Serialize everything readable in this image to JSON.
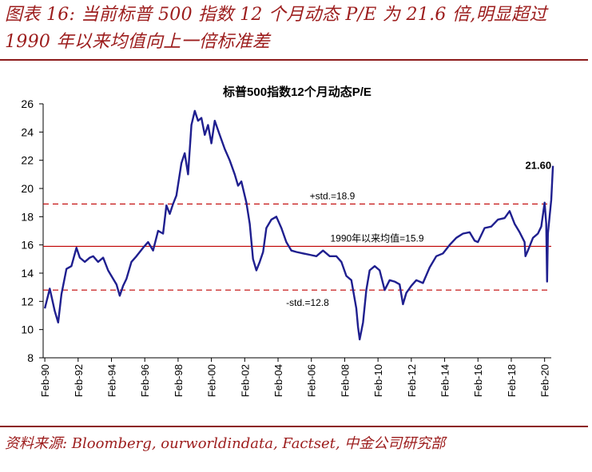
{
  "figure": {
    "title": "图表 16: 当前标普 500 指数 12 个月动态 P/E 为 21.6 倍,明显超过 1990 年以来均值向上一倍标准差",
    "source": "资料来源: Bloomberg, ourworldindata, Factset, 中金公司研究部"
  },
  "colors": {
    "accent": "#9c1c1c",
    "series": "#1f1f8f",
    "ref": "#c00000"
  },
  "chart_data": {
    "type": "line",
    "title": "标普500指数12个月动态P/E",
    "xlabel": "",
    "ylabel": "",
    "ylim": [
      8,
      26
    ],
    "yticks": [
      8,
      10,
      12,
      14,
      16,
      18,
      20,
      22,
      24,
      26
    ],
    "xlim": [
      1990.0,
      2020.5
    ],
    "xticks": [
      "Feb-90",
      "Feb-92",
      "Feb-94",
      "Feb-96",
      "Feb-98",
      "Feb-00",
      "Feb-02",
      "Feb-04",
      "Feb-06",
      "Feb-08",
      "Feb-10",
      "Feb-12",
      "Feb-14",
      "Feb-16",
      "Feb-18",
      "Feb-20"
    ],
    "grid": false,
    "series": [
      {
        "name": "12个月动态P/E",
        "x": [
          1990.1,
          1990.4,
          1990.7,
          1990.9,
          1991.1,
          1991.4,
          1991.7,
          1992.0,
          1992.2,
          1992.5,
          1992.8,
          1993.0,
          1993.3,
          1993.6,
          1993.9,
          1994.2,
          1994.4,
          1994.6,
          1994.8,
          1995.0,
          1995.3,
          1995.6,
          1996.0,
          1996.3,
          1996.6,
          1996.9,
          1997.2,
          1997.4,
          1997.6,
          1997.8,
          1998.0,
          1998.3,
          1998.5,
          1998.7,
          1998.9,
          1999.1,
          1999.3,
          1999.5,
          1999.7,
          1999.9,
          2000.1,
          2000.3,
          2000.6,
          2000.9,
          2001.2,
          2001.5,
          2001.7,
          2001.9,
          2002.2,
          2002.4,
          2002.6,
          2002.8,
          2003.0,
          2003.2,
          2003.4,
          2003.7,
          2004.0,
          2004.3,
          2004.6,
          2004.9,
          2005.2,
          2005.6,
          2006.0,
          2006.4,
          2006.8,
          2007.2,
          2007.6,
          2007.9,
          2008.2,
          2008.5,
          2008.8,
          2008.9,
          2009.0,
          2009.2,
          2009.4,
          2009.6,
          2009.9,
          2010.2,
          2010.5,
          2010.8,
          2011.1,
          2011.4,
          2011.6,
          2011.8,
          2012.1,
          2012.4,
          2012.8,
          2013.2,
          2013.6,
          2014.0,
          2014.4,
          2014.8,
          2015.2,
          2015.6,
          2015.9,
          2016.1,
          2016.5,
          2016.9,
          2017.3,
          2017.7,
          2018.0,
          2018.3,
          2018.6,
          2018.9,
          2018.95,
          2019.1,
          2019.4,
          2019.7,
          2019.9,
          2020.1,
          2020.2,
          2020.25,
          2020.3,
          2020.5,
          2020.6
        ],
        "values": [
          11.5,
          12.9,
          11.3,
          10.5,
          12.5,
          14.3,
          14.5,
          15.8,
          15.1,
          14.8,
          15.1,
          15.2,
          14.8,
          15.1,
          14.2,
          13.6,
          13.2,
          12.4,
          13.1,
          13.6,
          14.8,
          15.2,
          15.8,
          16.2,
          15.6,
          17.0,
          16.8,
          18.8,
          18.2,
          18.9,
          19.5,
          21.8,
          22.5,
          21.0,
          24.5,
          25.5,
          24.8,
          25.0,
          23.8,
          24.5,
          23.2,
          24.8,
          23.8,
          22.8,
          22.0,
          21.0,
          20.2,
          20.5,
          19.0,
          17.5,
          15.0,
          14.2,
          14.8,
          15.5,
          17.2,
          17.8,
          18.0,
          17.2,
          16.2,
          15.6,
          15.5,
          15.4,
          15.3,
          15.2,
          15.6,
          15.2,
          15.2,
          14.8,
          13.8,
          13.5,
          11.5,
          10.2,
          9.3,
          10.5,
          12.8,
          14.2,
          14.5,
          14.2,
          12.8,
          13.5,
          13.4,
          13.2,
          11.8,
          12.6,
          13.1,
          13.5,
          13.3,
          14.4,
          15.2,
          15.4,
          16.0,
          16.5,
          16.8,
          16.9,
          16.3,
          16.2,
          17.2,
          17.3,
          17.8,
          17.9,
          18.4,
          17.5,
          16.9,
          16.2,
          15.2,
          15.6,
          16.5,
          16.8,
          17.3,
          19.0,
          17.5,
          13.4,
          16.8,
          19.2,
          21.6
        ]
      }
    ],
    "reference_lines": [
      {
        "value": 18.9,
        "label": "+std.=18.9",
        "style": "dashed"
      },
      {
        "value": 15.9,
        "label": "1990年以来均值=15.9",
        "style": "solid"
      },
      {
        "value": 12.8,
        "label": "-std.=12.8",
        "style": "dashed"
      }
    ],
    "annotations": [
      {
        "x": 2020.6,
        "y": 21.6,
        "text": "21.60"
      }
    ]
  }
}
